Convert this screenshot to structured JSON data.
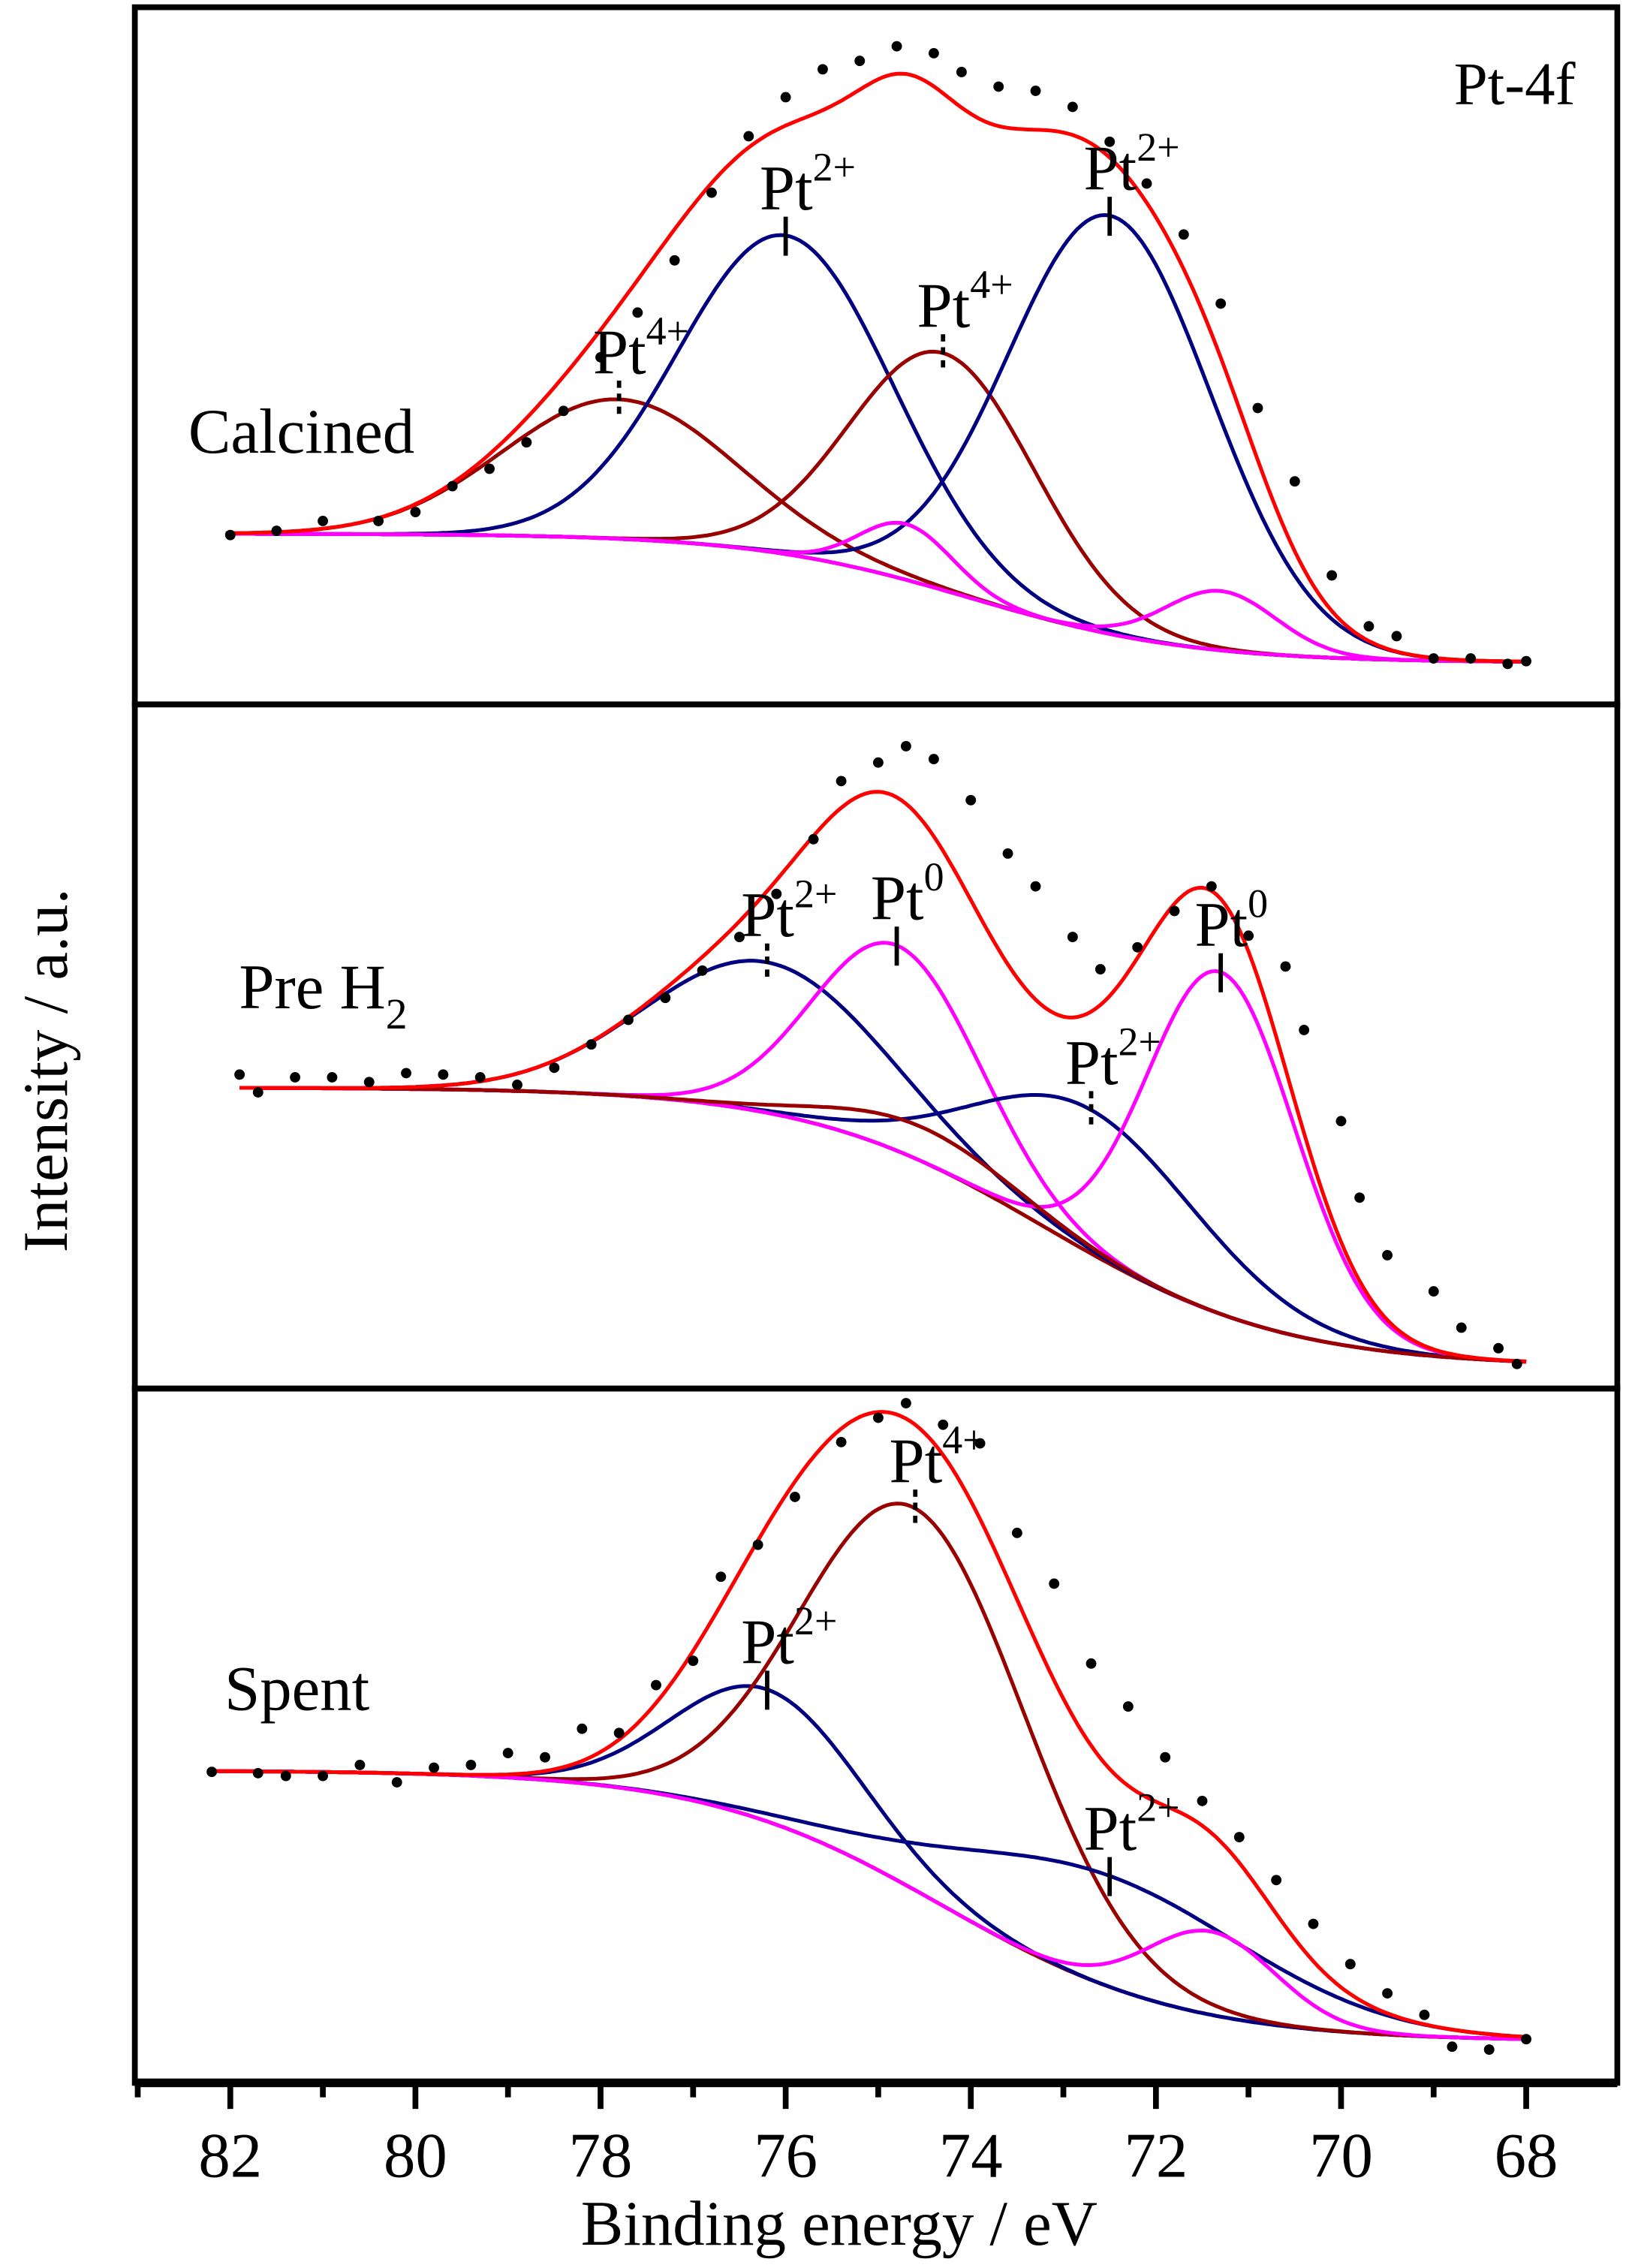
{
  "chart_data": {
    "type": "line",
    "title": "",
    "corner_label": "Pt-4f",
    "xlabel": "Binding energy / eV",
    "ylabel": "Intensity / a.u.",
    "xlim": [
      83,
      67
    ],
    "x_ticks": [
      82,
      80,
      78,
      76,
      74,
      72,
      70,
      68
    ],
    "x_tick_labels": [
      "82",
      "80",
      "78",
      "76",
      "74",
      "72",
      "70",
      "68"
    ],
    "x_minor_ticks": [
      83,
      81,
      79,
      77,
      75,
      73,
      71,
      69
    ],
    "grid": false,
    "colors": {
      "envelope": "#ff0000",
      "pt2": "#000080",
      "pt4": "#990000",
      "pt0": "#ff00ff",
      "background": "#990000",
      "points": "#000000"
    },
    "panels": [
      {
        "name": "calcined",
        "label": {
          "text": "Calcined",
          "sub": ""
        },
        "ylim": [
          0,
          100
        ],
        "fit_range": [
          68,
          82.05
        ],
        "background": {
          "type": "shirley-like",
          "low": 6,
          "high": 24.5,
          "center": 74,
          "width": 1.2
        },
        "components": [
          {
            "species": "Pt4+",
            "center": 77.8,
            "height": 20,
            "sigma": 1.25,
            "color": "#990000"
          },
          {
            "species": "Pt2+",
            "center": 76.0,
            "height": 45.7,
            "sigma": 1.15,
            "color": "#000080"
          },
          {
            "species": "Pt4+",
            "center": 74.3,
            "height": 34,
            "sigma": 1.0,
            "color": "#990000"
          },
          {
            "species": "Pt2+",
            "center": 72.5,
            "height": 60,
            "sigma": 1.1,
            "color": "#000080"
          },
          {
            "species": "Pt0",
            "center": 74.7,
            "height": 8,
            "sigma": 0.5,
            "color": "#ff00ff"
          },
          {
            "species": "Pt0",
            "center": 71.3,
            "height": 8.5,
            "sigma": 0.6,
            "color": "#ff00ff"
          }
        ],
        "annotations": [
          {
            "text": "Pt",
            "sup": "4+",
            "component": 0,
            "marker": "dashed"
          },
          {
            "text": "Pt",
            "sup": "2+",
            "component": 1,
            "marker": "solid"
          },
          {
            "text": "Pt",
            "sup": "4+",
            "component": 2,
            "marker": "dashed"
          },
          {
            "text": "Pt",
            "sup": "2+",
            "component": 3,
            "marker": "solid"
          }
        ],
        "points": [
          [
            82.0,
            24.3
          ],
          [
            81.5,
            24.9
          ],
          [
            81.0,
            26.3
          ],
          [
            80.4,
            26.3
          ],
          [
            80.0,
            27.6
          ],
          [
            79.6,
            31.3
          ],
          [
            79.2,
            33.8
          ],
          [
            78.8,
            37.6
          ],
          [
            78.4,
            42.1
          ],
          [
            78.0,
            49.8
          ],
          [
            77.6,
            56.2
          ],
          [
            77.2,
            63.7
          ],
          [
            76.8,
            73.4
          ],
          [
            76.4,
            81.5
          ],
          [
            76.0,
            87.1
          ],
          [
            75.6,
            91.1
          ],
          [
            75.2,
            92.3
          ],
          [
            74.8,
            94.4
          ],
          [
            74.4,
            93.4
          ],
          [
            74.1,
            90.7
          ],
          [
            73.7,
            88.6
          ],
          [
            73.3,
            88.0
          ],
          [
            72.9,
            85.7
          ],
          [
            72.5,
            80.7
          ],
          [
            72.1,
            74.7
          ],
          [
            71.7,
            67.4
          ],
          [
            71.3,
            57.5
          ],
          [
            70.9,
            42.5
          ],
          [
            70.5,
            32.0
          ],
          [
            70.1,
            18.5
          ],
          [
            69.7,
            11.2
          ],
          [
            69.4,
            9.8
          ],
          [
            69.0,
            6.6
          ],
          [
            68.6,
            6.6
          ],
          [
            68.2,
            5.8
          ],
          [
            68.0,
            6.2
          ]
        ]
      },
      {
        "name": "pre-h2",
        "label": {
          "text": "Pre H",
          "sub": "2"
        },
        "ylim": [
          0,
          100
        ],
        "fit_range": [
          68,
          81.9
        ],
        "background": {
          "type": "shirley-like",
          "low": 3.2,
          "high": 44,
          "center": 73.2,
          "width": 1.3
        },
        "components": [
          {
            "species": "Pt2+",
            "center": 76.2,
            "height": 22,
            "sigma": 1.3,
            "color": "#000080"
          },
          {
            "species": "Pt0",
            "center": 74.8,
            "height": 30,
            "sigma": 0.9,
            "color": "#ff00ff"
          },
          {
            "species": "Pt2+",
            "center": 72.7,
            "height": 21,
            "sigma": 1.2,
            "color": "#000080"
          },
          {
            "species": "Pt0",
            "center": 71.3,
            "height": 50,
            "sigma": 0.8,
            "color": "#ff00ff"
          },
          {
            "species": "Pt4+",
            "center": 74.5,
            "height": 5,
            "sigma": 1.0,
            "color": "#990000"
          }
        ],
        "annotations": [
          {
            "text": "Pt",
            "sup": "2+",
            "component": 0,
            "marker": "dashed"
          },
          {
            "text": "Pt",
            "sup": "0",
            "component": 1,
            "marker": "solid"
          },
          {
            "text": "Pt",
            "sup": "2+",
            "component": 2,
            "marker": "dashed"
          },
          {
            "text": "Pt",
            "sup": "0",
            "component": 3,
            "marker": "solid"
          }
        ],
        "points": [
          [
            81.9,
            45.9
          ],
          [
            81.7,
            43.3
          ],
          [
            81.3,
            45.5
          ],
          [
            80.9,
            45.5
          ],
          [
            80.5,
            44.8
          ],
          [
            80.1,
            46.1
          ],
          [
            79.7,
            45.9
          ],
          [
            79.3,
            45.5
          ],
          [
            78.9,
            44.4
          ],
          [
            78.5,
            46.9
          ],
          [
            78.1,
            50.3
          ],
          [
            77.7,
            53.9
          ],
          [
            77.3,
            57.1
          ],
          [
            76.9,
            61.1
          ],
          [
            76.5,
            66.0
          ],
          [
            76.1,
            72.3
          ],
          [
            75.7,
            80.3
          ],
          [
            75.4,
            88.8
          ],
          [
            75.0,
            91.5
          ],
          [
            74.7,
            93.9
          ],
          [
            74.4,
            92.0
          ],
          [
            74.0,
            86.0
          ],
          [
            73.6,
            78.2
          ],
          [
            73.3,
            73.4
          ],
          [
            72.9,
            66.0
          ],
          [
            72.6,
            61.3
          ],
          [
            72.2,
            64.5
          ],
          [
            71.8,
            69.8
          ],
          [
            71.4,
            73.4
          ],
          [
            71.0,
            66.2
          ],
          [
            70.6,
            61.7
          ],
          [
            70.4,
            52.4
          ],
          [
            70.0,
            39.1
          ],
          [
            69.8,
            27.9
          ],
          [
            69.5,
            19.5
          ],
          [
            69.0,
            14.2
          ],
          [
            68.7,
            8.9
          ],
          [
            68.3,
            5.9
          ],
          [
            68.1,
            3.6
          ]
        ]
      },
      {
        "name": "spent",
        "label": {
          "text": "Spent",
          "sub": ""
        },
        "ylim": [
          0,
          100
        ],
        "fit_range": [
          68,
          82.2
        ],
        "background": {
          "type": "shirley-like",
          "low": 6,
          "high": 45,
          "center": 74.3,
          "width": 1.3
        },
        "components": [
          {
            "species": "Pt2+",
            "center": 76.2,
            "height": 19,
            "sigma": 1.0,
            "color": "#000080"
          },
          {
            "species": "Pt4+",
            "center": 74.6,
            "height": 55,
            "sigma": 1.2,
            "color": "#990000"
          },
          {
            "species": "Pt2+",
            "center": 72.5,
            "height": 16,
            "sigma": 1.6,
            "color": "#000080"
          },
          {
            "species": "Pt0",
            "center": 71.4,
            "height": 12,
            "sigma": 0.7,
            "color": "#ff00ff"
          }
        ],
        "annotations": [
          {
            "text": "Pt",
            "sup": "2+",
            "component": 0,
            "marker": "solid"
          },
          {
            "text": "Pt",
            "sup": "4+",
            "component": 1,
            "marker": "dashed"
          },
          {
            "text": "Pt",
            "sup": "2+",
            "component": 2,
            "marker": "solid"
          }
        ],
        "points": [
          [
            82.2,
            44.8
          ],
          [
            81.7,
            44.6
          ],
          [
            81.4,
            44.2
          ],
          [
            81.0,
            44.2
          ],
          [
            80.6,
            45.8
          ],
          [
            80.2,
            43.3
          ],
          [
            79.8,
            45.4
          ],
          [
            79.4,
            45.8
          ],
          [
            79.0,
            47.5
          ],
          [
            78.6,
            46.9
          ],
          [
            78.2,
            51.0
          ],
          [
            77.8,
            50.4
          ],
          [
            77.4,
            57.3
          ],
          [
            77.0,
            60.8
          ],
          [
            76.7,
            72.9
          ],
          [
            76.3,
            77.5
          ],
          [
            75.9,
            84.4
          ],
          [
            75.4,
            92.3
          ],
          [
            75.0,
            95.8
          ],
          [
            74.7,
            97.9
          ],
          [
            74.3,
            94.8
          ],
          [
            73.9,
            92.1
          ],
          [
            73.5,
            79.2
          ],
          [
            73.1,
            71.9
          ],
          [
            72.7,
            60.4
          ],
          [
            72.3,
            54.2
          ],
          [
            71.9,
            46.9
          ],
          [
            71.5,
            40.6
          ],
          [
            71.1,
            35.4
          ],
          [
            70.7,
            29.2
          ],
          [
            70.3,
            22.9
          ],
          [
            69.9,
            17.1
          ],
          [
            69.5,
            12.9
          ],
          [
            69.1,
            9.8
          ],
          [
            68.8,
            5.2
          ],
          [
            68.4,
            4.8
          ],
          [
            68.0,
            6.3
          ]
        ]
      }
    ]
  }
}
